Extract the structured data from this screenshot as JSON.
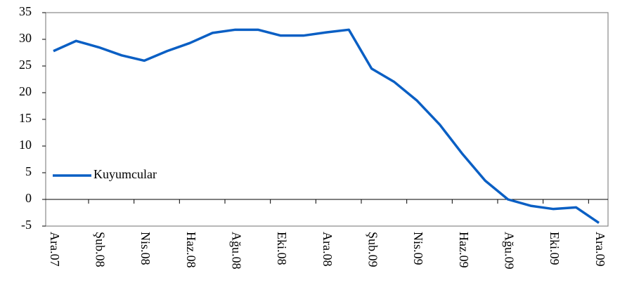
{
  "chart_data": {
    "type": "line",
    "categories": [
      "Ara.07",
      null,
      "Şub.08",
      null,
      "Nis.08",
      null,
      "Haz.08",
      null,
      "Ağu.08",
      null,
      "Eki.08",
      null,
      "Ara.08",
      null,
      "Şub.09",
      null,
      "Nis.09",
      null,
      "Haz.09",
      null,
      "Ağu.09",
      null,
      "Eki.09",
      null,
      "Ara.09"
    ],
    "series": [
      {
        "name": "Kuyumcular",
        "color": "#0a5fc4",
        "values": [
          27.8,
          29.7,
          28.5,
          27,
          26,
          27.8,
          29.3,
          31.2,
          31.8,
          31.8,
          30.7,
          30.7,
          31.3,
          31.8,
          24.5,
          22,
          18.5,
          14,
          8.5,
          3.5,
          0,
          -1.2,
          -1.8,
          -1.5,
          -4.4
        ]
      }
    ],
    "ylim": [
      -5,
      35
    ],
    "yticks": [
      -5,
      0,
      5,
      10,
      15,
      20,
      25,
      30,
      35
    ],
    "legend": "lower left"
  }
}
